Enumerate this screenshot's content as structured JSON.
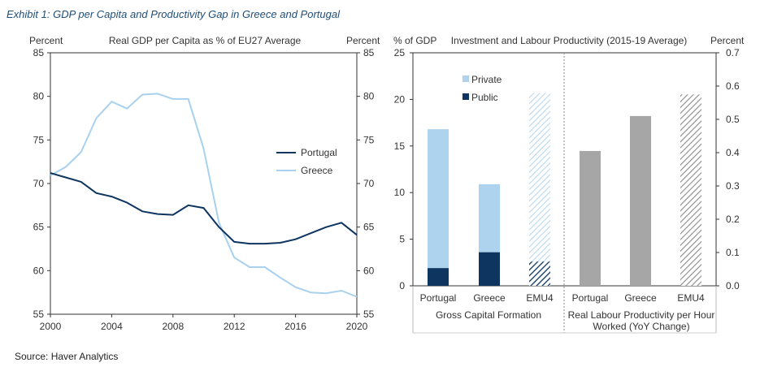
{
  "exhibit_title": "Exhibit 1: GDP per Capita and Productivity Gap in Greece and Portugal",
  "source": "Source: Haver Analytics",
  "colors": {
    "portugal_line": "#0d3560",
    "greece_line": "#a9d1ee",
    "private": "#aed3ee",
    "public": "#0d3560",
    "productivity": "#a6a6a6",
    "emu4_hatch": "#8a8a8a",
    "emu4_light_hatch": "#b9d8ee"
  },
  "chart_data": [
    {
      "type": "line",
      "title": "Real GDP per Capita as % of EU27 Average",
      "ylabel_left": "Percent",
      "ylabel_right": "Percent",
      "ylim": [
        55,
        85
      ],
      "xlim": [
        2000,
        2020
      ],
      "x_ticks": [
        "2000",
        "2004",
        "2008",
        "2012",
        "2016",
        "2020"
      ],
      "y_ticks": [
        "85",
        "80",
        "75",
        "70",
        "65",
        "60",
        "55"
      ],
      "legend_position": "right",
      "grid": false,
      "series": [
        {
          "name": "Portugal",
          "x": [
            2000,
            2001,
            2002,
            2003,
            2004,
            2005,
            2006,
            2007,
            2008,
            2009,
            2010,
            2011,
            2012,
            2013,
            2014,
            2015,
            2016,
            2017,
            2018,
            2019,
            2020
          ],
          "values": [
            71.2,
            70.7,
            70.2,
            68.9,
            68.5,
            67.8,
            66.8,
            66.5,
            66.4,
            67.5,
            67.2,
            65.0,
            63.3,
            63.1,
            63.1,
            63.2,
            63.6,
            64.3,
            65.0,
            65.5,
            64.1
          ]
        },
        {
          "name": "Greece",
          "x": [
            2000,
            2001,
            2002,
            2003,
            2004,
            2005,
            2006,
            2007,
            2008,
            2009,
            2010,
            2011,
            2012,
            2013,
            2014,
            2015,
            2016,
            2017,
            2018,
            2019,
            2020
          ],
          "values": [
            70.9,
            71.9,
            73.6,
            77.5,
            79.4,
            78.6,
            80.2,
            80.3,
            79.7,
            79.7,
            74.0,
            65.5,
            61.5,
            60.4,
            60.4,
            59.2,
            58.1,
            57.5,
            57.4,
            57.7,
            57.0
          ]
        }
      ]
    },
    {
      "type": "bar",
      "stacked": true,
      "title": "Investment and Labour Productivity (2015-19 Average)",
      "ylabel": "% of GDP",
      "ylim": [
        0,
        25
      ],
      "y_ticks": [
        "25",
        "20",
        "15",
        "10",
        "5",
        "0"
      ],
      "categories": [
        "Portugal",
        "Greece",
        "EMU4"
      ],
      "xlabel": "Gross Capital Formation",
      "legend_position": "top-left",
      "series": [
        {
          "name": "Public",
          "values": [
            1.9,
            3.6,
            2.6
          ]
        },
        {
          "name": "Private",
          "values": [
            14.9,
            7.3,
            18.1
          ]
        }
      ]
    },
    {
      "type": "bar",
      "ylabel": "Percent",
      "ylim": [
        0,
        0.7
      ],
      "y_ticks": [
        "0.7",
        "0.6",
        "0.5",
        "0.4",
        "0.3",
        "0.2",
        "0.1",
        "0.0"
      ],
      "categories": [
        "Portugal",
        "Greece",
        "EMU4"
      ],
      "xlabel": "Real Labour Productivity per Hour Worked (YoY Change)",
      "xlabel_lines": [
        "Real Labour Productivity per Hour",
        "Worked (YoY Change)"
      ],
      "values": [
        0.405,
        0.51,
        0.575
      ]
    }
  ]
}
